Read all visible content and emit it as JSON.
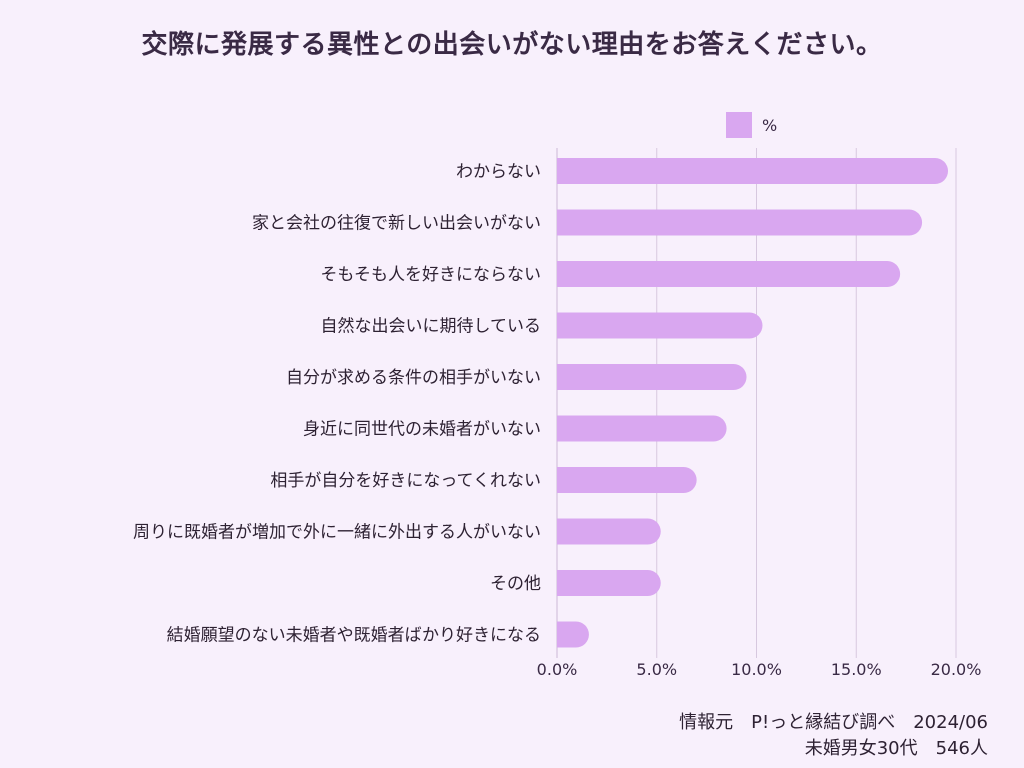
{
  "chart_data": {
    "type": "bar",
    "orientation": "horizontal",
    "title": "交際に発展する異性との出会いがない理由をお答えください。",
    "categories": [
      "わからない",
      "家と会社の往復で新しい出会いがない",
      "そもそも人を好きにならない",
      "自然な出会いに期待している",
      "自分が求める条件の相手がいない",
      "身近に同世代の未婚者がいない",
      "相手が自分を好きになってくれない",
      "周りに既婚者が増加で外に一緒に外出する人がいない",
      "その他",
      "結婚願望のない未婚者や既婚者ばかり好きになる"
    ],
    "series": [
      {
        "name": "%",
        "values": [
          19.6,
          18.3,
          17.2,
          10.3,
          9.5,
          8.5,
          7.0,
          5.2,
          5.2,
          1.6
        ]
      }
    ],
    "x_ticks": [
      "0.0%",
      "5.0%",
      "10.0%",
      "15.0%",
      "20.0%"
    ],
    "xlim": [
      0,
      20
    ],
    "grid": true,
    "legend_position": "top-right",
    "bar_color": "#d9a7f0"
  },
  "source": {
    "line1": "情報元　P!っと縁結び調べ　2024/06",
    "line2": "未婚男女30代　546人"
  }
}
